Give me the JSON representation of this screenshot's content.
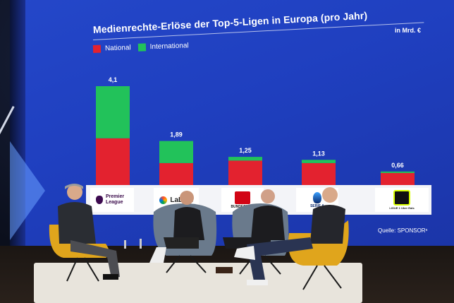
{
  "chart_data": {
    "type": "bar",
    "title": "Medienrechte-Erlöse der Top-5-Ligen in Europa (pro Jahr)",
    "unit": "in Mrd. €",
    "legend": [
      "National",
      "International"
    ],
    "categories": [
      "Premier League",
      "LaLiga",
      "Bundesliga",
      "Serie A",
      "Ligue 1 Uber Eats"
    ],
    "totals": [
      "4,1",
      "1,89",
      "1,25",
      "1,13",
      "0,66"
    ],
    "totals_values": [
      4.1,
      1.89,
      1.25,
      1.13,
      0.66
    ],
    "series": [
      {
        "name": "National",
        "values": [
          2.0,
          1.0,
          1.1,
          1.0,
          0.6
        ]
      },
      {
        "name": "International",
        "values": [
          2.1,
          0.89,
          0.15,
          0.13,
          0.06
        ]
      }
    ],
    "colors": {
      "national": "#e3222f",
      "international": "#22c25a"
    }
  },
  "logos": {
    "premier": "Premier League",
    "laliga": "LaLiga",
    "bundesliga": "BUNDESLIGA",
    "seriea": "SERIE A",
    "ligue1": "LIGUE 1 Uber Eats"
  },
  "source": "Quelle: SPONSORˢ"
}
